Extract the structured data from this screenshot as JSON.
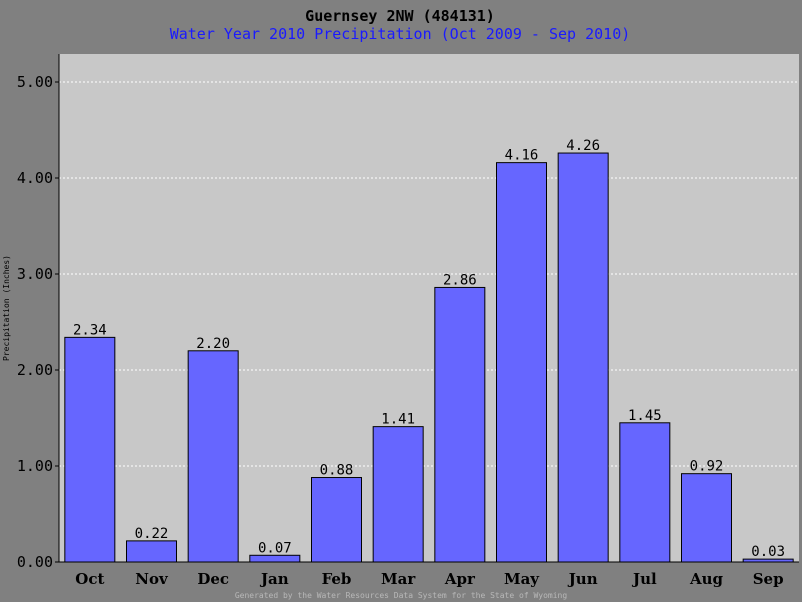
{
  "chart_data": {
    "type": "bar",
    "title": "Guernsey 2NW (484131)",
    "subtitle": "Water Year 2010 Precipitation (Oct 2009 - Sep 2010)",
    "ylabel": "Precipitation (Inches)",
    "xlabel": "",
    "categories": [
      "Oct",
      "Nov",
      "Dec",
      "Jan",
      "Feb",
      "Mar",
      "Apr",
      "May",
      "Jun",
      "Jul",
      "Aug",
      "Sep"
    ],
    "values": [
      2.34,
      0.22,
      2.2,
      0.07,
      0.88,
      1.41,
      2.86,
      4.16,
      4.26,
      1.45,
      0.92,
      0.03
    ],
    "data_labels": [
      "2.34",
      "0.22",
      "2.20",
      "0.07",
      "0.88",
      "1.41",
      "2.86",
      "4.16",
      "4.26",
      "1.45",
      "0.92",
      "0.03"
    ],
    "yticks": [
      0,
      1,
      2,
      3,
      4,
      5
    ],
    "ytick_labels": [
      "0.00",
      "1.00",
      "2.00",
      "3.00",
      "4.00",
      "5.00"
    ],
    "ylim": [
      0,
      5.3
    ],
    "grid": "horizontal dotted",
    "legend": "none",
    "credit": "Generated by the Water Resources Data System for the State of Wyoming",
    "colors": {
      "background": "#808080",
      "plot_area": "#c8c8c8",
      "bar_fill": "#6666ff",
      "bar_stroke": "#000000",
      "title": "#000000",
      "subtitle": "#1a1aff",
      "grid": "#ffffff",
      "credit": "#b8b8b8"
    }
  }
}
